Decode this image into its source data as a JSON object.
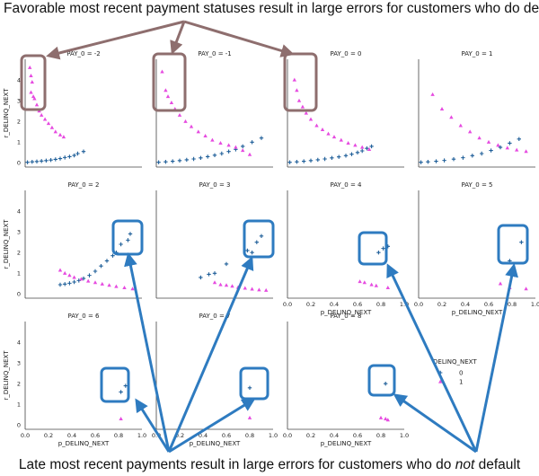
{
  "captions": {
    "top": "Favorable most recent payment statuses result in large errors for customers who do default",
    "bottom_before": "Late most recent payments result in large errors for customers who do ",
    "bottom_em": "not",
    "bottom_after": " default"
  },
  "colors": {
    "class0": "#1f5f99",
    "class1": "#e64be0",
    "gray_box": "#8e6e6e",
    "gray_arrow": "#8e6e6e",
    "blue_box": "#2e7bc0",
    "blue_arrow": "#2e7bc0"
  },
  "chart_data": {
    "type": "scatter",
    "grid": "facet 3x4 by PAY_0",
    "xlabel": "p_DELINQ_NEXT",
    "ylabel": "r_DELINQ_NEXT",
    "xlim": [
      0,
      1
    ],
    "ylim": [
      -0.2,
      5
    ],
    "xticks": [
      "0.0",
      "0.2",
      "0.4",
      "0.6",
      "0.8",
      "1.0"
    ],
    "yticks": [
      "0",
      "1",
      "2",
      "3",
      "4"
    ],
    "legend": {
      "title": "DELINQ_NEXT",
      "entries": [
        "0",
        "1"
      ],
      "placement": "right of last row"
    },
    "panels": [
      {
        "title": "PAY_0 = -2",
        "class0": [
          [
            0.02,
            0.03
          ],
          [
            0.06,
            0.05
          ],
          [
            0.1,
            0.07
          ],
          [
            0.14,
            0.09
          ],
          [
            0.18,
            0.11
          ],
          [
            0.22,
            0.14
          ],
          [
            0.26,
            0.17
          ],
          [
            0.3,
            0.21
          ],
          [
            0.34,
            0.26
          ],
          [
            0.38,
            0.3
          ],
          [
            0.42,
            0.36
          ],
          [
            0.45,
            0.45
          ],
          [
            0.5,
            0.55
          ]
        ],
        "class1": [
          [
            0.04,
            4.6
          ],
          [
            0.05,
            4.2
          ],
          [
            0.06,
            3.9
          ],
          [
            0.05,
            3.4
          ],
          [
            0.07,
            3.2
          ],
          [
            0.08,
            3.1
          ],
          [
            0.1,
            2.8
          ],
          [
            0.12,
            2.5
          ],
          [
            0.14,
            2.3
          ],
          [
            0.17,
            2.1
          ],
          [
            0.2,
            1.9
          ],
          [
            0.23,
            1.7
          ],
          [
            0.26,
            1.5
          ],
          [
            0.3,
            1.35
          ],
          [
            0.33,
            1.25
          ]
        ]
      },
      {
        "title": "PAY_0 = -1",
        "class0": [
          [
            0.02,
            0.03
          ],
          [
            0.08,
            0.05
          ],
          [
            0.14,
            0.08
          ],
          [
            0.2,
            0.11
          ],
          [
            0.26,
            0.15
          ],
          [
            0.32,
            0.19
          ],
          [
            0.38,
            0.24
          ],
          [
            0.44,
            0.3
          ],
          [
            0.5,
            0.37
          ],
          [
            0.56,
            0.45
          ],
          [
            0.62,
            0.55
          ],
          [
            0.68,
            0.65
          ],
          [
            0.74,
            0.8
          ],
          [
            0.82,
            1.0
          ],
          [
            0.9,
            1.2
          ]
        ],
        "class1": [
          [
            0.05,
            4.4
          ],
          [
            0.08,
            3.5
          ],
          [
            0.1,
            3.2
          ],
          [
            0.13,
            2.9
          ],
          [
            0.16,
            2.6
          ],
          [
            0.2,
            2.3
          ],
          [
            0.25,
            2.0
          ],
          [
            0.3,
            1.75
          ],
          [
            0.36,
            1.5
          ],
          [
            0.42,
            1.3
          ],
          [
            0.48,
            1.1
          ],
          [
            0.55,
            0.95
          ],
          [
            0.62,
            0.85
          ],
          [
            0.68,
            0.75
          ],
          [
            0.74,
            0.6
          ],
          [
            0.8,
            0.4
          ]
        ]
      },
      {
        "title": "PAY_0 = 0",
        "class0": [
          [
            0.02,
            0.03
          ],
          [
            0.08,
            0.05
          ],
          [
            0.14,
            0.08
          ],
          [
            0.2,
            0.11
          ],
          [
            0.26,
            0.15
          ],
          [
            0.32,
            0.19
          ],
          [
            0.38,
            0.24
          ],
          [
            0.44,
            0.29
          ],
          [
            0.5,
            0.35
          ],
          [
            0.55,
            0.42
          ],
          [
            0.6,
            0.5
          ],
          [
            0.64,
            0.58
          ],
          [
            0.68,
            0.7
          ],
          [
            0.72,
            0.8
          ]
        ],
        "class1": [
          [
            0.06,
            4.0
          ],
          [
            0.08,
            3.5
          ],
          [
            0.1,
            3.0
          ],
          [
            0.13,
            2.7
          ],
          [
            0.16,
            2.4
          ],
          [
            0.2,
            2.1
          ],
          [
            0.25,
            1.8
          ],
          [
            0.3,
            1.6
          ],
          [
            0.35,
            1.4
          ],
          [
            0.4,
            1.25
          ],
          [
            0.46,
            1.1
          ],
          [
            0.52,
            0.95
          ],
          [
            0.58,
            0.85
          ],
          [
            0.64,
            0.75
          ],
          [
            0.7,
            0.65
          ]
        ]
      },
      {
        "title": "PAY_0 = 1",
        "class0": [
          [
            0.02,
            0.03
          ],
          [
            0.08,
            0.05
          ],
          [
            0.15,
            0.08
          ],
          [
            0.22,
            0.12
          ],
          [
            0.3,
            0.18
          ],
          [
            0.38,
            0.25
          ],
          [
            0.46,
            0.35
          ],
          [
            0.54,
            0.45
          ],
          [
            0.62,
            0.6
          ],
          [
            0.7,
            0.75
          ],
          [
            0.78,
            0.95
          ],
          [
            0.86,
            1.15
          ]
        ],
        "class1": [
          [
            0.12,
            3.3
          ],
          [
            0.2,
            2.6
          ],
          [
            0.28,
            2.2
          ],
          [
            0.36,
            1.8
          ],
          [
            0.44,
            1.5
          ],
          [
            0.52,
            1.2
          ],
          [
            0.6,
            1.0
          ],
          [
            0.68,
            0.85
          ],
          [
            0.76,
            0.72
          ],
          [
            0.84,
            0.62
          ],
          [
            0.92,
            0.55
          ]
        ]
      },
      {
        "title": "PAY_0 = 2",
        "class0": [
          [
            0.3,
            0.45
          ],
          [
            0.34,
            0.48
          ],
          [
            0.38,
            0.52
          ],
          [
            0.42,
            0.58
          ],
          [
            0.46,
            0.65
          ],
          [
            0.5,
            0.75
          ],
          [
            0.55,
            0.9
          ],
          [
            0.6,
            1.1
          ],
          [
            0.65,
            1.35
          ],
          [
            0.7,
            1.6
          ],
          [
            0.75,
            1.85
          ],
          [
            0.78,
            2.0
          ],
          [
            0.82,
            2.4
          ],
          [
            0.88,
            2.6
          ],
          [
            0.9,
            2.9
          ]
        ],
        "class1": [
          [
            0.3,
            1.15
          ],
          [
            0.34,
            1.0
          ],
          [
            0.38,
            0.9
          ],
          [
            0.42,
            0.8
          ],
          [
            0.48,
            0.72
          ],
          [
            0.54,
            0.62
          ],
          [
            0.6,
            0.55
          ],
          [
            0.66,
            0.48
          ],
          [
            0.72,
            0.42
          ],
          [
            0.78,
            0.36
          ],
          [
            0.85,
            0.3
          ],
          [
            0.92,
            0.25
          ]
        ]
      },
      {
        "title": "PAY_0 = 3",
        "class0": [
          [
            0.38,
            0.8
          ],
          [
            0.45,
            0.95
          ],
          [
            0.5,
            1.0
          ],
          [
            0.6,
            1.45
          ],
          [
            0.78,
            2.1
          ],
          [
            0.82,
            2.0
          ],
          [
            0.86,
            2.5
          ],
          [
            0.9,
            2.8
          ]
        ],
        "class1": [
          [
            0.5,
            0.55
          ],
          [
            0.55,
            0.45
          ],
          [
            0.6,
            0.42
          ],
          [
            0.65,
            0.38
          ],
          [
            0.7,
            0.32
          ],
          [
            0.76,
            0.28
          ],
          [
            0.82,
            0.24
          ],
          [
            0.88,
            0.2
          ],
          [
            0.94,
            0.18
          ]
        ]
      },
      {
        "title": "PAY_0 = 4",
        "class0": [
          [
            0.78,
            2.0
          ],
          [
            0.82,
            2.2
          ],
          [
            0.86,
            2.3
          ]
        ],
        "class1": [
          [
            0.62,
            0.6
          ],
          [
            0.66,
            0.55
          ],
          [
            0.72,
            0.45
          ],
          [
            0.76,
            0.4
          ],
          [
            0.86,
            0.3
          ]
        ]
      },
      {
        "title": "PAY_0 = 5",
        "class0": [
          [
            0.78,
            1.6
          ],
          [
            0.88,
            2.5
          ]
        ],
        "class1": [
          [
            0.7,
            0.5
          ],
          [
            0.78,
            0.3
          ],
          [
            0.92,
            0.25
          ]
        ]
      },
      {
        "title": "PAY_0 = 6",
        "class0": [
          [
            0.82,
            1.6
          ],
          [
            0.86,
            1.9
          ]
        ],
        "class1": [
          [
            0.82,
            0.3
          ]
        ]
      },
      {
        "title": "PAY_0 = 7",
        "class0": [
          [
            0.8,
            1.8
          ]
        ],
        "class1": [
          [
            0.8,
            0.35
          ]
        ]
      },
      {
        "title": "PAY_0 = 8",
        "class0": [
          [
            0.84,
            2.0
          ]
        ],
        "class1": [
          [
            0.8,
            0.35
          ],
          [
            0.84,
            0.3
          ],
          [
            0.86,
            0.25
          ]
        ]
      }
    ]
  }
}
